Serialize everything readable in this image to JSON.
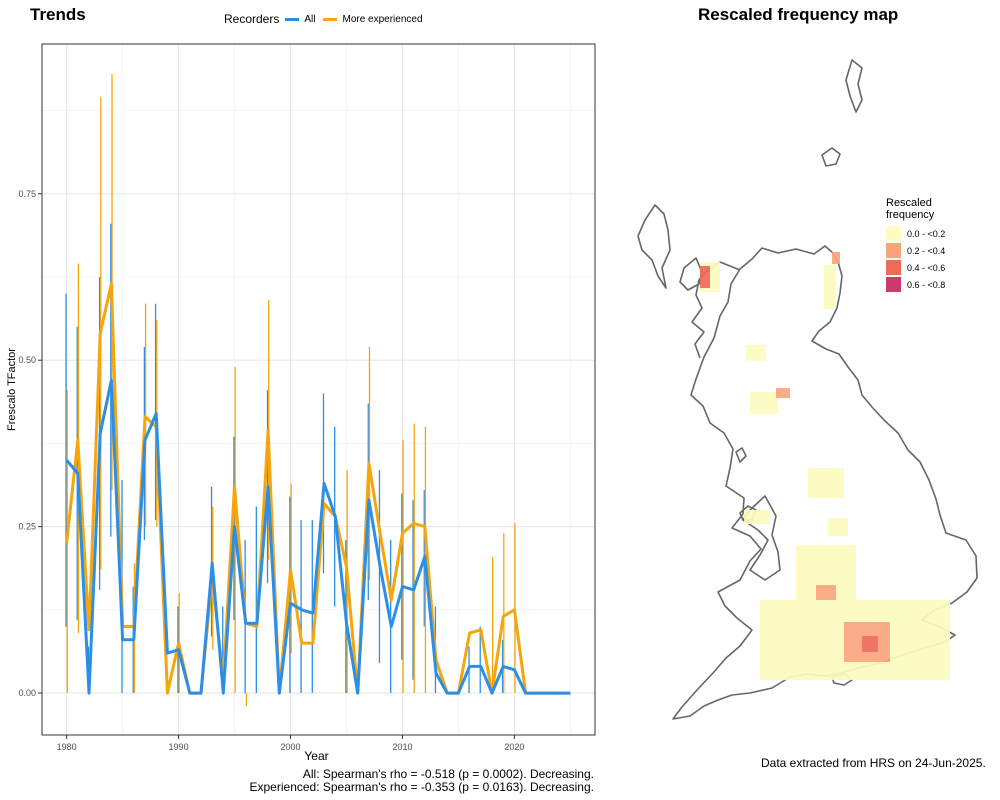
{
  "trends_title": "Trends",
  "map_title": "Rescaled frequency map",
  "legend": {
    "title": "Recorders",
    "items": [
      {
        "label": "All",
        "color": "#2b8fe8"
      },
      {
        "label": "More experienced",
        "color": "#f6a50c"
      }
    ]
  },
  "stats": {
    "all": "All: Spearman's rho = -0.518 (p = 0.0002). Decreasing.",
    "experienced": "Experienced: Spearman's rho = -0.353 (p = 0.0163). Decreasing."
  },
  "map_legend": {
    "title_line1": "Rescaled",
    "title_line2": "frequency",
    "classes": [
      {
        "label": "0.0 - <0.2",
        "color": "#fdfbc0"
      },
      {
        "label": "0.2 - <0.4",
        "color": "#f9a57b"
      },
      {
        "label": "0.4 - <0.6",
        "color": "#ef6a5a"
      },
      {
        "label": "0.6 - <0.8",
        "color": "#cb3a6c"
      }
    ]
  },
  "footer": "Data extracted from HRS on 24-Jun-2025.",
  "chart_data": {
    "type": "line",
    "xlabel": "Year",
    "ylabel": "Frescalo TFactor",
    "xlim": [
      1977.8,
      2027.2
    ],
    "ylim": [
      -0.063,
      0.975
    ],
    "xticks": [
      1980,
      1990,
      2000,
      2010,
      2020
    ],
    "yticks": [
      0.0,
      0.25,
      0.5,
      0.75
    ],
    "ytick_labels": [
      "0.00",
      "0.25",
      "0.50",
      "0.75"
    ],
    "grid": true,
    "x": [
      1980,
      1981,
      1982,
      1983,
      1984,
      1985,
      1986,
      1987,
      1988,
      1989,
      1990,
      1991,
      1992,
      1993,
      1994,
      1995,
      1996,
      1997,
      1998,
      1999,
      2000,
      2001,
      2002,
      2003,
      2004,
      2005,
      2006,
      2007,
      2008,
      2009,
      2010,
      2011,
      2012,
      2013,
      2014,
      2015,
      2016,
      2017,
      2018,
      2019,
      2020,
      2021,
      2022,
      2023,
      2024,
      2025
    ],
    "series": [
      {
        "name": "All",
        "color": "#2b8fe8",
        "values": [
          0.35,
          0.33,
          0.0,
          0.39,
          0.47,
          0.08,
          0.08,
          0.38,
          0.42,
          0.06,
          0.065,
          0.0,
          0.0,
          0.195,
          0.0,
          0.25,
          0.105,
          0.105,
          0.31,
          0.0,
          0.135,
          0.125,
          0.12,
          0.315,
          0.265,
          0.105,
          0.0,
          0.29,
          0.19,
          0.1,
          0.16,
          0.155,
          0.205,
          0.03,
          0.0,
          0.0,
          0.04,
          0.04,
          0.0,
          0.04,
          0.035,
          0.0,
          0.0,
          0.0,
          0.0,
          0.0
        ],
        "upper": [
          0.6,
          0.55,
          0.07,
          0.625,
          0.705,
          0.32,
          0.16,
          0.52,
          0.585,
          0.0,
          0.13,
          0.0,
          0.0,
          0.31,
          0.13,
          0.385,
          0.23,
          0.28,
          0.455,
          0.0,
          0.295,
          0.26,
          0.26,
          0.45,
          0.4,
          0.23,
          0.0,
          0.435,
          0.335,
          0.23,
          0.3,
          0.29,
          0.305,
          0.13,
          0.0,
          0.0,
          0.07,
          0.1,
          0.0,
          0.08,
          0.0,
          0.0,
          0.0,
          0.0,
          0.0,
          0.0
        ],
        "lower": [
          0.1,
          0.11,
          0.0,
          0.155,
          0.235,
          0.0,
          0.0,
          0.23,
          0.26,
          0.0,
          0.0,
          0.0,
          0.0,
          0.085,
          0.0,
          0.11,
          0.0,
          0.0,
          0.165,
          0.0,
          0.0,
          0.0,
          0.0,
          0.18,
          0.13,
          0.0,
          0.0,
          0.14,
          0.045,
          0.0,
          0.05,
          0.02,
          0.1,
          0.0,
          0.0,
          0.0,
          0.0,
          0.0,
          0.0,
          0.0,
          0.0,
          0.0,
          0.0,
          0.0,
          0.0,
          0.0
        ]
      },
      {
        "name": "More experienced",
        "color": "#f6a50c",
        "values": [
          0.225,
          0.38,
          0.095,
          0.54,
          0.615,
          0.1,
          0.1,
          0.415,
          0.4,
          0.0,
          0.075,
          0.0,
          0.0,
          0.175,
          0.02,
          0.31,
          0.105,
          0.1,
          0.395,
          0.0,
          0.185,
          0.075,
          0.075,
          0.285,
          0.265,
          0.19,
          0.0,
          0.345,
          0.24,
          0.14,
          0.24,
          0.255,
          0.25,
          0.05,
          0.0,
          0.0,
          0.09,
          0.095,
          0.0,
          0.115,
          0.125,
          0.0,
          0.0,
          0.0,
          0.0,
          0.0
        ],
        "upper": [
          0.455,
          0.645,
          0.0,
          0.895,
          0.93,
          0.0,
          0.195,
          0.585,
          0.56,
          0.0,
          0.15,
          0.0,
          0.0,
          0.28,
          0.0,
          0.49,
          0.0,
          0.0,
          0.59,
          0.0,
          0.315,
          0.0,
          0.0,
          0.0,
          0.0,
          0.335,
          0.0,
          0.52,
          0.0,
          0.0,
          0.38,
          0.405,
          0.4,
          0.0,
          0.0,
          0.0,
          0.0,
          0.0,
          0.205,
          0.24,
          0.255,
          0.0,
          0.0,
          0.0,
          0.0,
          0.0
        ],
        "lower": [
          0.0,
          0.09,
          0.0,
          0.185,
          0.305,
          0.0,
          0.0,
          0.25,
          0.25,
          0.0,
          0.0,
          0.0,
          0.0,
          0.065,
          0.0,
          0.0,
          -0.02,
          0.0,
          0.2,
          0.0,
          0.06,
          0.0,
          0.0,
          0.0,
          0.0,
          0.0,
          0.0,
          0.17,
          0.0,
          0.0,
          0.0,
          0.0,
          0.0,
          0.0,
          0.0,
          0.0,
          0.0,
          0.0,
          0.0,
          0.0,
          0.0,
          0.0,
          0.0,
          0.0,
          0.0,
          0.0
        ]
      }
    ]
  }
}
